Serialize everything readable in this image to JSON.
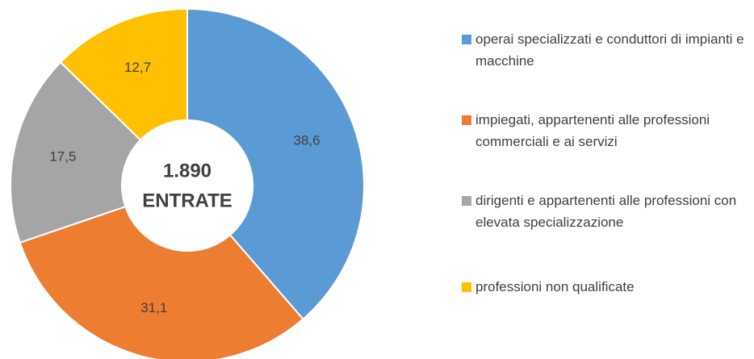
{
  "chart_data": {
    "type": "donut",
    "center_text": [
      "1.890",
      "ENTRATE"
    ],
    "categories": [
      "operai specializzati e conduttori di impianti e macchine",
      "impiegati, appartenenti alle professioni commerciali e ai servizi",
      "dirigenti e appartenenti alle professioni con elevata specializzazione",
      "professioni non qualificate"
    ],
    "values": [
      38.6,
      31.1,
      17.5,
      12.7
    ],
    "value_labels": [
      "38,6",
      "31,1",
      "17,5",
      "12,7"
    ],
    "colors": [
      "#5b9bd5",
      "#ed7d31",
      "#a5a5a5",
      "#ffc000"
    ],
    "legend": "right"
  }
}
